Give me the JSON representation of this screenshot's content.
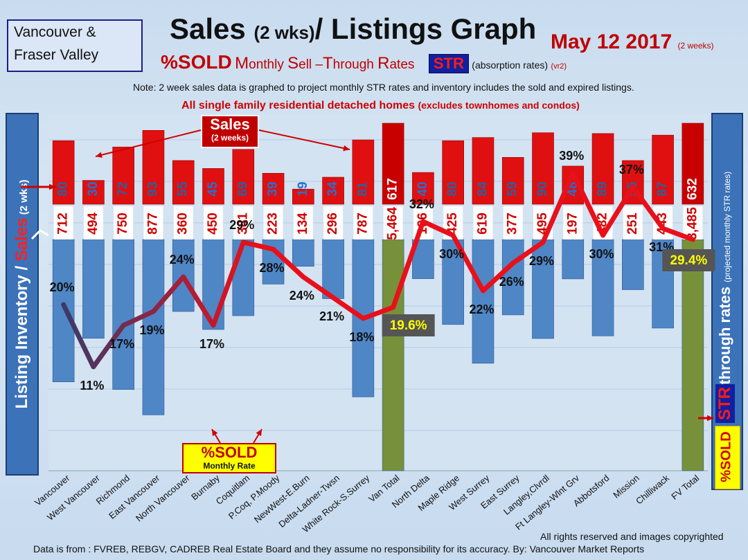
{
  "header": {
    "region_line1": "Vancouver &",
    "region_line2": "Fraser Valley",
    "title_main": "Sales ",
    "title_small": "(2 wks)",
    "title_rest": "/ Listings Graph",
    "date": "May 12 2017",
    "date_note": "(2 weeks)",
    "pct_sold": "%SOLD",
    "rate_m": "M",
    "rate_onthly": "onthly ",
    "rate_s": "S",
    "rate_ell": "ell –",
    "rate_t": "T",
    "rate_hrough": "hrough ",
    "rate_r": "R",
    "rate_ates": "ates",
    "str_badge": "STR",
    "absorption": "(absorption rates)",
    "version": "(vr2)",
    "note": "Note: 2 week sales data is graphed to project monthly STR rates and inventory includes the sold and expired listings.",
    "scope": "All single family residential detached homes",
    "scope_note": "(excludes townhomes and condos)"
  },
  "left_axis": {
    "label_a": "Listing Inventory / ",
    "label_b": "Sales",
    "label_c": " (2  wks)"
  },
  "right_axis": {
    "label": "Sell-through rates",
    "note": "(projected monthly STR rates)",
    "str": "STR",
    "sold": "%SOLD"
  },
  "callouts": {
    "sales_title": "Sales",
    "sales_sub": "(2 weeks)",
    "sold_title": "%SOLD",
    "sold_sub": "Monthly Rate"
  },
  "footer": {
    "rights": "All rights reserved and  images copyrighted",
    "source": "Data is from : FVREB, REBGV, CADREB Real Estate Board and they assume  no responsibility  for its accuracy. By: Vancouver Market Reports"
  },
  "colors": {
    "sales_bar": "#e01010",
    "listing_bar": "#4f86c6",
    "total_bar": "#77913a",
    "line": "#e8101a",
    "line_dark": "#3a3a6a",
    "total_label_bg": "#555555",
    "total_label_text": "#ffff00"
  },
  "chart_data": {
    "type": "bar",
    "categories": [
      "Vancouver",
      "West Vancouver",
      "Richmond",
      "East Vancouver",
      "North Vancouver",
      "Burnaby",
      "Coquitlam",
      "P.Coq, P.Moody",
      "NewWest-E.Burn",
      "Delta-Ladner-Twsn",
      "White Rock-S.Surrey",
      "Van Total",
      "North Delta",
      "Maple Ridge",
      "West Surrey",
      "East Surrey",
      "Langley,Clvrdl",
      "Ft Langley-Wlnt Grv",
      "Abbotsford",
      "Mission",
      "Chilliwack",
      "FV Total"
    ],
    "series": [
      {
        "values": [
          80,
          30,
          72,
          93,
          55,
          45,
          69,
          39,
          19,
          34,
          81,
          617,
          40,
          80,
          84,
          59,
          90,
          48,
          89,
          55,
          87,
          632
        ]
      },
      {
        "values": [
          712,
          494,
          750,
          877,
          360,
          450,
          381,
          223,
          134,
          296,
          787,
          5464,
          196,
          425,
          619,
          377,
          495,
          197,
          482,
          251,
          443,
          3485
        ]
      },
      {
        "values": [
          20,
          11,
          17,
          19,
          24,
          17,
          29,
          28,
          24,
          21,
          18,
          19.6,
          32,
          30,
          22,
          26,
          29,
          39,
          30,
          37,
          31,
          29.4
        ]
      }
    ],
    "sales_labels": [
      "80",
      "30",
      "72",
      "93",
      "55",
      "45",
      "69",
      "39",
      "19",
      "34",
      "81",
      "617",
      "40",
      "80",
      "84",
      "59",
      "90",
      "48",
      "89",
      "55",
      "87",
      "632"
    ],
    "listing_labels": [
      "712",
      "494",
      "750",
      "877",
      "360",
      "450",
      "381",
      "223",
      "134",
      "296",
      "787",
      "5,464",
      "196",
      "425",
      "619",
      "377",
      "495",
      "197",
      "482",
      "251",
      "443",
      "3,485"
    ],
    "str_labels": [
      "20%",
      "11%",
      "17%",
      "19%",
      "24%",
      "17%",
      "29%",
      "28%",
      "24%",
      "21%",
      "18%",
      "19.6%",
      "32%",
      "30%",
      "22%",
      "26%",
      "29%",
      "39%",
      "30%",
      "37%",
      "31%",
      "29.4%"
    ],
    "str_ylim": [
      0,
      50
    ],
    "total_indices": [
      11,
      21
    ]
  }
}
